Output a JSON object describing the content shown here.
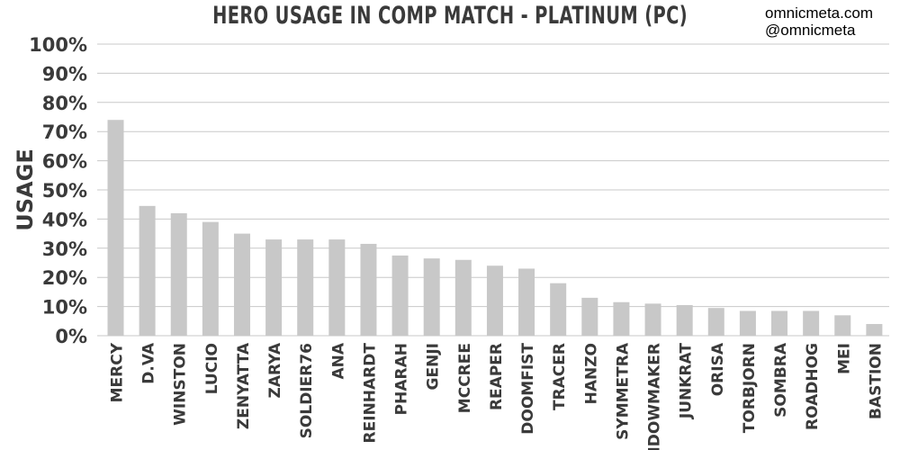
{
  "header": {
    "title": "HERO USAGE IN COMP MATCH - PLATINUM (PC)",
    "credit_site": "omnicmeta.com",
    "credit_handle": "@omnicmeta"
  },
  "chart_data": {
    "type": "bar",
    "title": "HERO USAGE IN COMP MATCH - PLATINUM (PC)",
    "xlabel": "",
    "ylabel": "USAGE",
    "ylim": [
      0,
      100
    ],
    "yticks": [
      "0%",
      "10%",
      "20%",
      "30%",
      "40%",
      "50%",
      "60%",
      "70%",
      "80%",
      "90%",
      "100%"
    ],
    "grid": true,
    "legend": "none",
    "bar_color": "#c8c8c8",
    "grid_color": "#c8c8c8",
    "text_color": "#3a3a3a",
    "categories": [
      "MERCY",
      "D.VA",
      "WINSTON",
      "LUCIO",
      "ZENYATTA",
      "ZARYA",
      "SOLDIER76",
      "ANA",
      "REINHARDT",
      "PHARAH",
      "GENJI",
      "MCCREE",
      "REAPER",
      "DOOMFIST",
      "TRACER",
      "HANZO",
      "SYMMETRA",
      "WIDOWMAKER",
      "JUNKRAT",
      "ORISA",
      "TORBJORN",
      "SOMBRA",
      "ROADHOG",
      "MEI",
      "BASTION"
    ],
    "values": [
      74,
      44.5,
      42,
      39,
      35,
      33,
      33,
      33,
      31.5,
      27.5,
      26.5,
      26,
      24,
      23,
      18,
      13,
      11.5,
      11,
      10.5,
      9.5,
      8.5,
      8.5,
      8.5,
      7,
      4
    ]
  }
}
